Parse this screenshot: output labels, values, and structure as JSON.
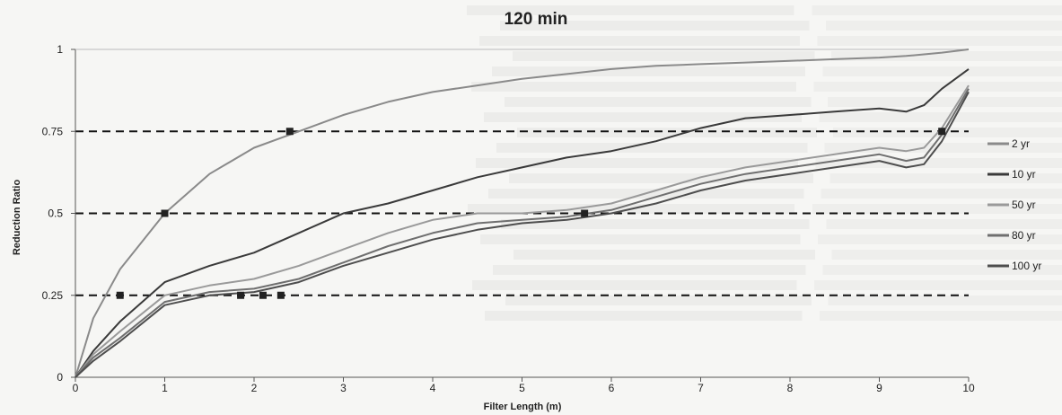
{
  "chart_data": {
    "type": "line",
    "title": "120 min",
    "xlabel": "Filter Length (m)",
    "ylabel": "Reduction Ratio",
    "xlim": [
      0,
      10
    ],
    "ylim": [
      0,
      1
    ],
    "x_ticks": [
      0,
      1,
      2,
      3,
      4,
      5,
      6,
      7,
      8,
      9,
      10
    ],
    "y_ticks": [
      0,
      0.25,
      0.5,
      0.75,
      1
    ],
    "y_tick_labels": [
      "0",
      "0.25",
      "0.5",
      "0.75",
      "1"
    ],
    "grid": false,
    "legend_position": "right",
    "reference_lines": [
      0.25,
      0.5,
      0.75
    ],
    "x": [
      0,
      0.2,
      0.5,
      1,
      1.5,
      2,
      2.5,
      3,
      3.5,
      4,
      4.5,
      5,
      5.5,
      6,
      6.5,
      7,
      7.5,
      8,
      8.5,
      9,
      9.3,
      9.5,
      9.7,
      10
    ],
    "series": [
      {
        "name": "2 yr",
        "values": [
          0,
          0.18,
          0.33,
          0.5,
          0.62,
          0.7,
          0.75,
          0.8,
          0.84,
          0.87,
          0.89,
          0.91,
          0.925,
          0.94,
          0.95,
          0.955,
          0.96,
          0.965,
          0.97,
          0.975,
          0.98,
          0.985,
          0.99,
          1.0
        ]
      },
      {
        "name": "10 yr",
        "values": [
          0,
          0.08,
          0.17,
          0.29,
          0.34,
          0.38,
          0.44,
          0.5,
          0.53,
          0.57,
          0.61,
          0.64,
          0.67,
          0.69,
          0.72,
          0.76,
          0.79,
          0.8,
          0.81,
          0.82,
          0.81,
          0.83,
          0.88,
          0.94
        ]
      },
      {
        "name": "50 yr",
        "values": [
          0,
          0.07,
          0.14,
          0.25,
          0.28,
          0.3,
          0.34,
          0.39,
          0.44,
          0.48,
          0.5,
          0.5,
          0.51,
          0.53,
          0.57,
          0.61,
          0.64,
          0.66,
          0.68,
          0.7,
          0.69,
          0.7,
          0.76,
          0.89
        ]
      },
      {
        "name": "80 yr",
        "values": [
          0,
          0.06,
          0.12,
          0.23,
          0.26,
          0.27,
          0.3,
          0.35,
          0.4,
          0.44,
          0.47,
          0.48,
          0.49,
          0.51,
          0.55,
          0.59,
          0.62,
          0.64,
          0.66,
          0.68,
          0.66,
          0.67,
          0.74,
          0.88
        ]
      },
      {
        "name": "100 yr",
        "values": [
          0,
          0.05,
          0.11,
          0.22,
          0.25,
          0.26,
          0.29,
          0.34,
          0.38,
          0.42,
          0.45,
          0.47,
          0.48,
          0.5,
          0.53,
          0.57,
          0.6,
          0.62,
          0.64,
          0.66,
          0.64,
          0.65,
          0.72,
          0.87
        ]
      }
    ],
    "series_colors": [
      "#8a8a8a",
      "#3a3a3a",
      "#9a9a9a",
      "#6f6f6f",
      "#4e4e4e"
    ],
    "markers": [
      {
        "x": 1.0,
        "y": 0.5
      },
      {
        "x": 0.5,
        "y": 0.25
      },
      {
        "x": 2.4,
        "y": 0.75
      },
      {
        "x": 1.85,
        "y": 0.25
      },
      {
        "x": 2.1,
        "y": 0.25
      },
      {
        "x": 2.3,
        "y": 0.25
      },
      {
        "x": 5.7,
        "y": 0.5
      },
      {
        "x": 9.7,
        "y": 0.75
      }
    ]
  }
}
